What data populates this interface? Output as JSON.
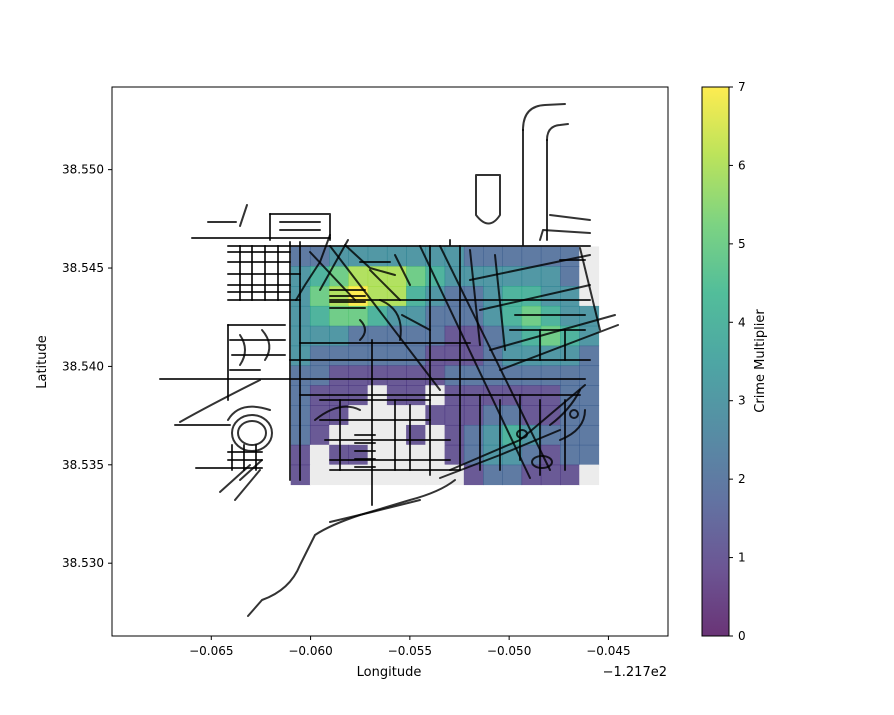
{
  "chart_data": {
    "type": "heatmap",
    "title": "",
    "xlabel": "Longitude",
    "ylabel": "Latitude",
    "x_offset_label": "−1.217e2",
    "xticks": [
      -0.065,
      -0.06,
      -0.055,
      -0.05,
      -0.045
    ],
    "xtick_labels": [
      "−0.065",
      "−0.060",
      "−0.055",
      "−0.050",
      "−0.045"
    ],
    "yticks": [
      38.53,
      38.535,
      38.54,
      38.545,
      38.55
    ],
    "ytick_labels": [
      "38.530",
      "38.535",
      "38.540",
      "38.545",
      "38.550"
    ],
    "xlim": [
      -0.07,
      -0.042
    ],
    "ylim": [
      38.5263,
      38.5542
    ],
    "grid": false,
    "colorbar": {
      "label": "Crime Multiplier",
      "min": 0,
      "max": 7,
      "ticks": [
        0,
        1,
        2,
        3,
        4,
        5,
        6,
        7
      ],
      "colormap": "viridis",
      "alpha": 0.8
    },
    "heatmap_extent": {
      "lon": [
        -0.061,
        -0.0455
      ],
      "lat": [
        38.534,
        38.5461
      ]
    },
    "heatmap_grid_shape": [
      12,
      16
    ],
    "heatmap_values": [
      [
        2,
        2,
        3,
        3,
        3,
        3,
        3,
        3,
        3,
        2,
        2,
        2,
        2,
        2,
        2,
        null
      ],
      [
        3,
        4,
        5,
        6,
        6,
        6,
        5,
        4,
        3,
        3,
        3,
        3,
        3,
        3,
        2,
        null
      ],
      [
        3,
        5,
        6,
        7,
        6,
        6,
        4,
        3,
        2,
        2,
        3,
        4,
        4,
        3,
        3,
        null
      ],
      [
        3,
        4,
        5,
        5,
        4,
        3,
        3,
        2,
        2,
        2,
        3,
        4,
        5,
        4,
        3,
        3
      ],
      [
        3,
        3,
        3,
        2,
        2,
        2,
        2,
        2,
        1,
        1,
        2,
        3,
        4,
        5,
        4,
        3
      ],
      [
        3,
        2,
        2,
        2,
        2,
        2,
        2,
        1,
        1,
        1,
        2,
        3,
        3,
        3,
        3,
        2
      ],
      [
        2,
        2,
        1,
        1,
        1,
        1,
        1,
        1,
        2,
        2,
        2,
        2,
        2,
        2,
        2,
        2
      ],
      [
        2,
        1,
        1,
        1,
        null,
        1,
        1,
        null,
        1,
        1,
        1,
        1,
        1,
        1,
        2,
        2
      ],
      [
        2,
        1,
        1,
        null,
        null,
        null,
        null,
        1,
        1,
        1,
        2,
        2,
        1,
        1,
        2,
        2
      ],
      [
        2,
        1,
        null,
        null,
        null,
        null,
        1,
        null,
        1,
        2,
        3,
        4,
        3,
        2,
        2,
        2
      ],
      [
        1,
        null,
        1,
        1,
        null,
        null,
        null,
        null,
        1,
        2,
        3,
        3,
        2,
        1,
        2,
        2
      ],
      [
        1,
        null,
        null,
        null,
        null,
        null,
        null,
        null,
        null,
        1,
        2,
        2,
        1,
        1,
        1,
        null
      ]
    ],
    "roads_color": "#000000",
    "no_data_color": "#ececec"
  }
}
